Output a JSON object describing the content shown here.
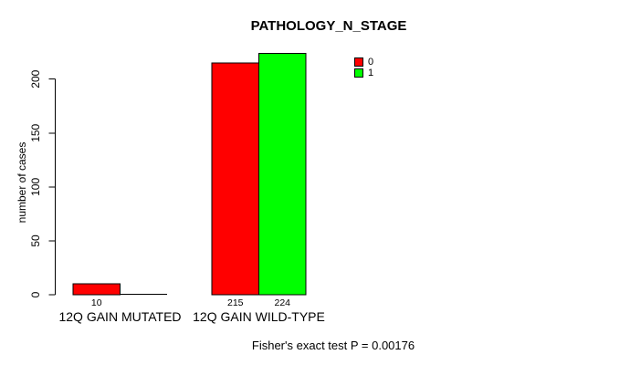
{
  "chart_data": {
    "type": "bar",
    "title": "PATHOLOGY_N_STAGE",
    "ylabel": "number of cases",
    "xlabel": "",
    "ylim": [
      0,
      234
    ],
    "yticks": [
      0,
      50,
      100,
      150,
      200
    ],
    "grid": false,
    "legend_position": "top-right",
    "categories": [
      "12Q GAIN MUTATED",
      "12Q GAIN WILD-TYPE"
    ],
    "series": [
      {
        "name": "0",
        "color": "#ff0000",
        "values": [
          10,
          215
        ]
      },
      {
        "name": "1",
        "color": "#00ff00",
        "values": [
          0,
          224
        ]
      }
    ],
    "value_labels": [
      [
        "10",
        ""
      ],
      [
        "215",
        "224"
      ]
    ],
    "footnote": "Fisher's exact test P = 0.00176"
  }
}
